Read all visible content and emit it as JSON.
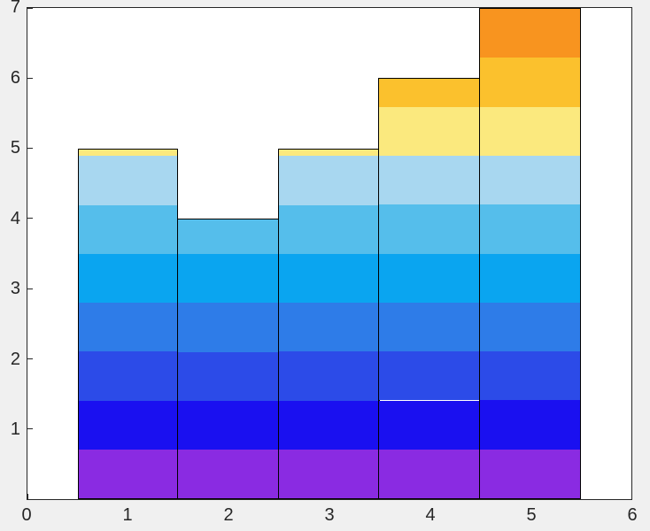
{
  "figure": {
    "background_color": "#F0F0F0",
    "plot_background_color": "#FFFFFF",
    "axis_color": "#262626",
    "tick_label_color": "#262626"
  },
  "chart_data": {
    "type": "bar",
    "orientation": "vertical",
    "x": [
      1,
      2,
      3,
      4,
      5
    ],
    "values": [
      5,
      4,
      5,
      6,
      7
    ],
    "bar_width": 1,
    "xlim": [
      0,
      6
    ],
    "ylim": [
      0,
      7
    ],
    "xticks": [
      0,
      1,
      2,
      3,
      4,
      5,
      6
    ],
    "yticks": [
      1,
      2,
      3,
      4,
      5,
      6,
      7
    ],
    "grid": false,
    "bar_edge_color": "#000000",
    "color_bands": [
      {
        "from": 0.0,
        "to": 0.7,
        "color": "#8A2BE2"
      },
      {
        "from": 0.7,
        "to": 1.4,
        "color": "#1A10F0"
      },
      {
        "from": 1.4,
        "to": 2.1,
        "color": "#2C4BE8"
      },
      {
        "from": 2.1,
        "to": 2.8,
        "color": "#2E7CE8"
      },
      {
        "from": 2.8,
        "to": 3.5,
        "color": "#0AA5F0"
      },
      {
        "from": 3.5,
        "to": 4.2,
        "color": "#55BEEB"
      },
      {
        "from": 4.2,
        "to": 4.9,
        "color": "#A8D7F0"
      },
      {
        "from": 4.9,
        "to": 5.6,
        "color": "#FBE97E"
      },
      {
        "from": 5.6,
        "to": 6.3,
        "color": "#FBC12D"
      },
      {
        "from": 6.3,
        "to": 7.0,
        "color": "#F8941F"
      }
    ]
  }
}
